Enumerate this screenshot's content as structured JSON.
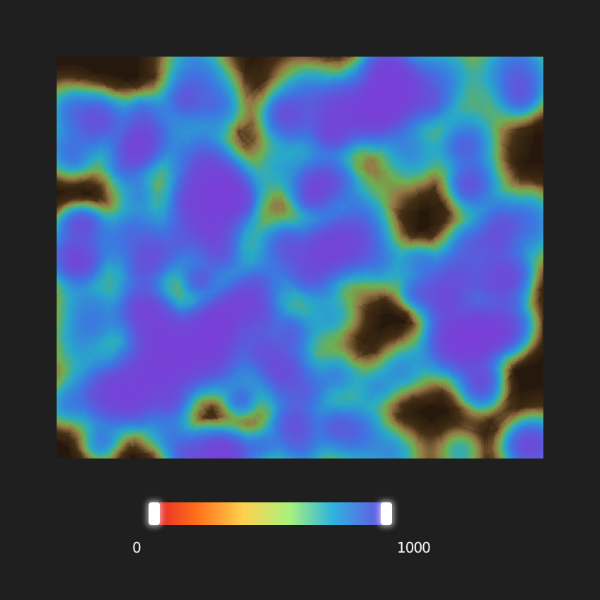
{
  "heatmap": {
    "colors": {
      "low": "#2a1a0e",
      "mid_low": "#8a6a3c",
      "mid": "#6ab04a",
      "high_low": "#22a3d9",
      "high": "#7a3fd6"
    }
  },
  "legend": {
    "min_label": "0",
    "max_label": "1000",
    "min_value": 0,
    "max_value": 1000,
    "gradient": [
      "#e4242c",
      "#ff6f1a",
      "#ffd04d",
      "#a8f27c",
      "#2fb5e0",
      "#6a4be2"
    ]
  }
}
